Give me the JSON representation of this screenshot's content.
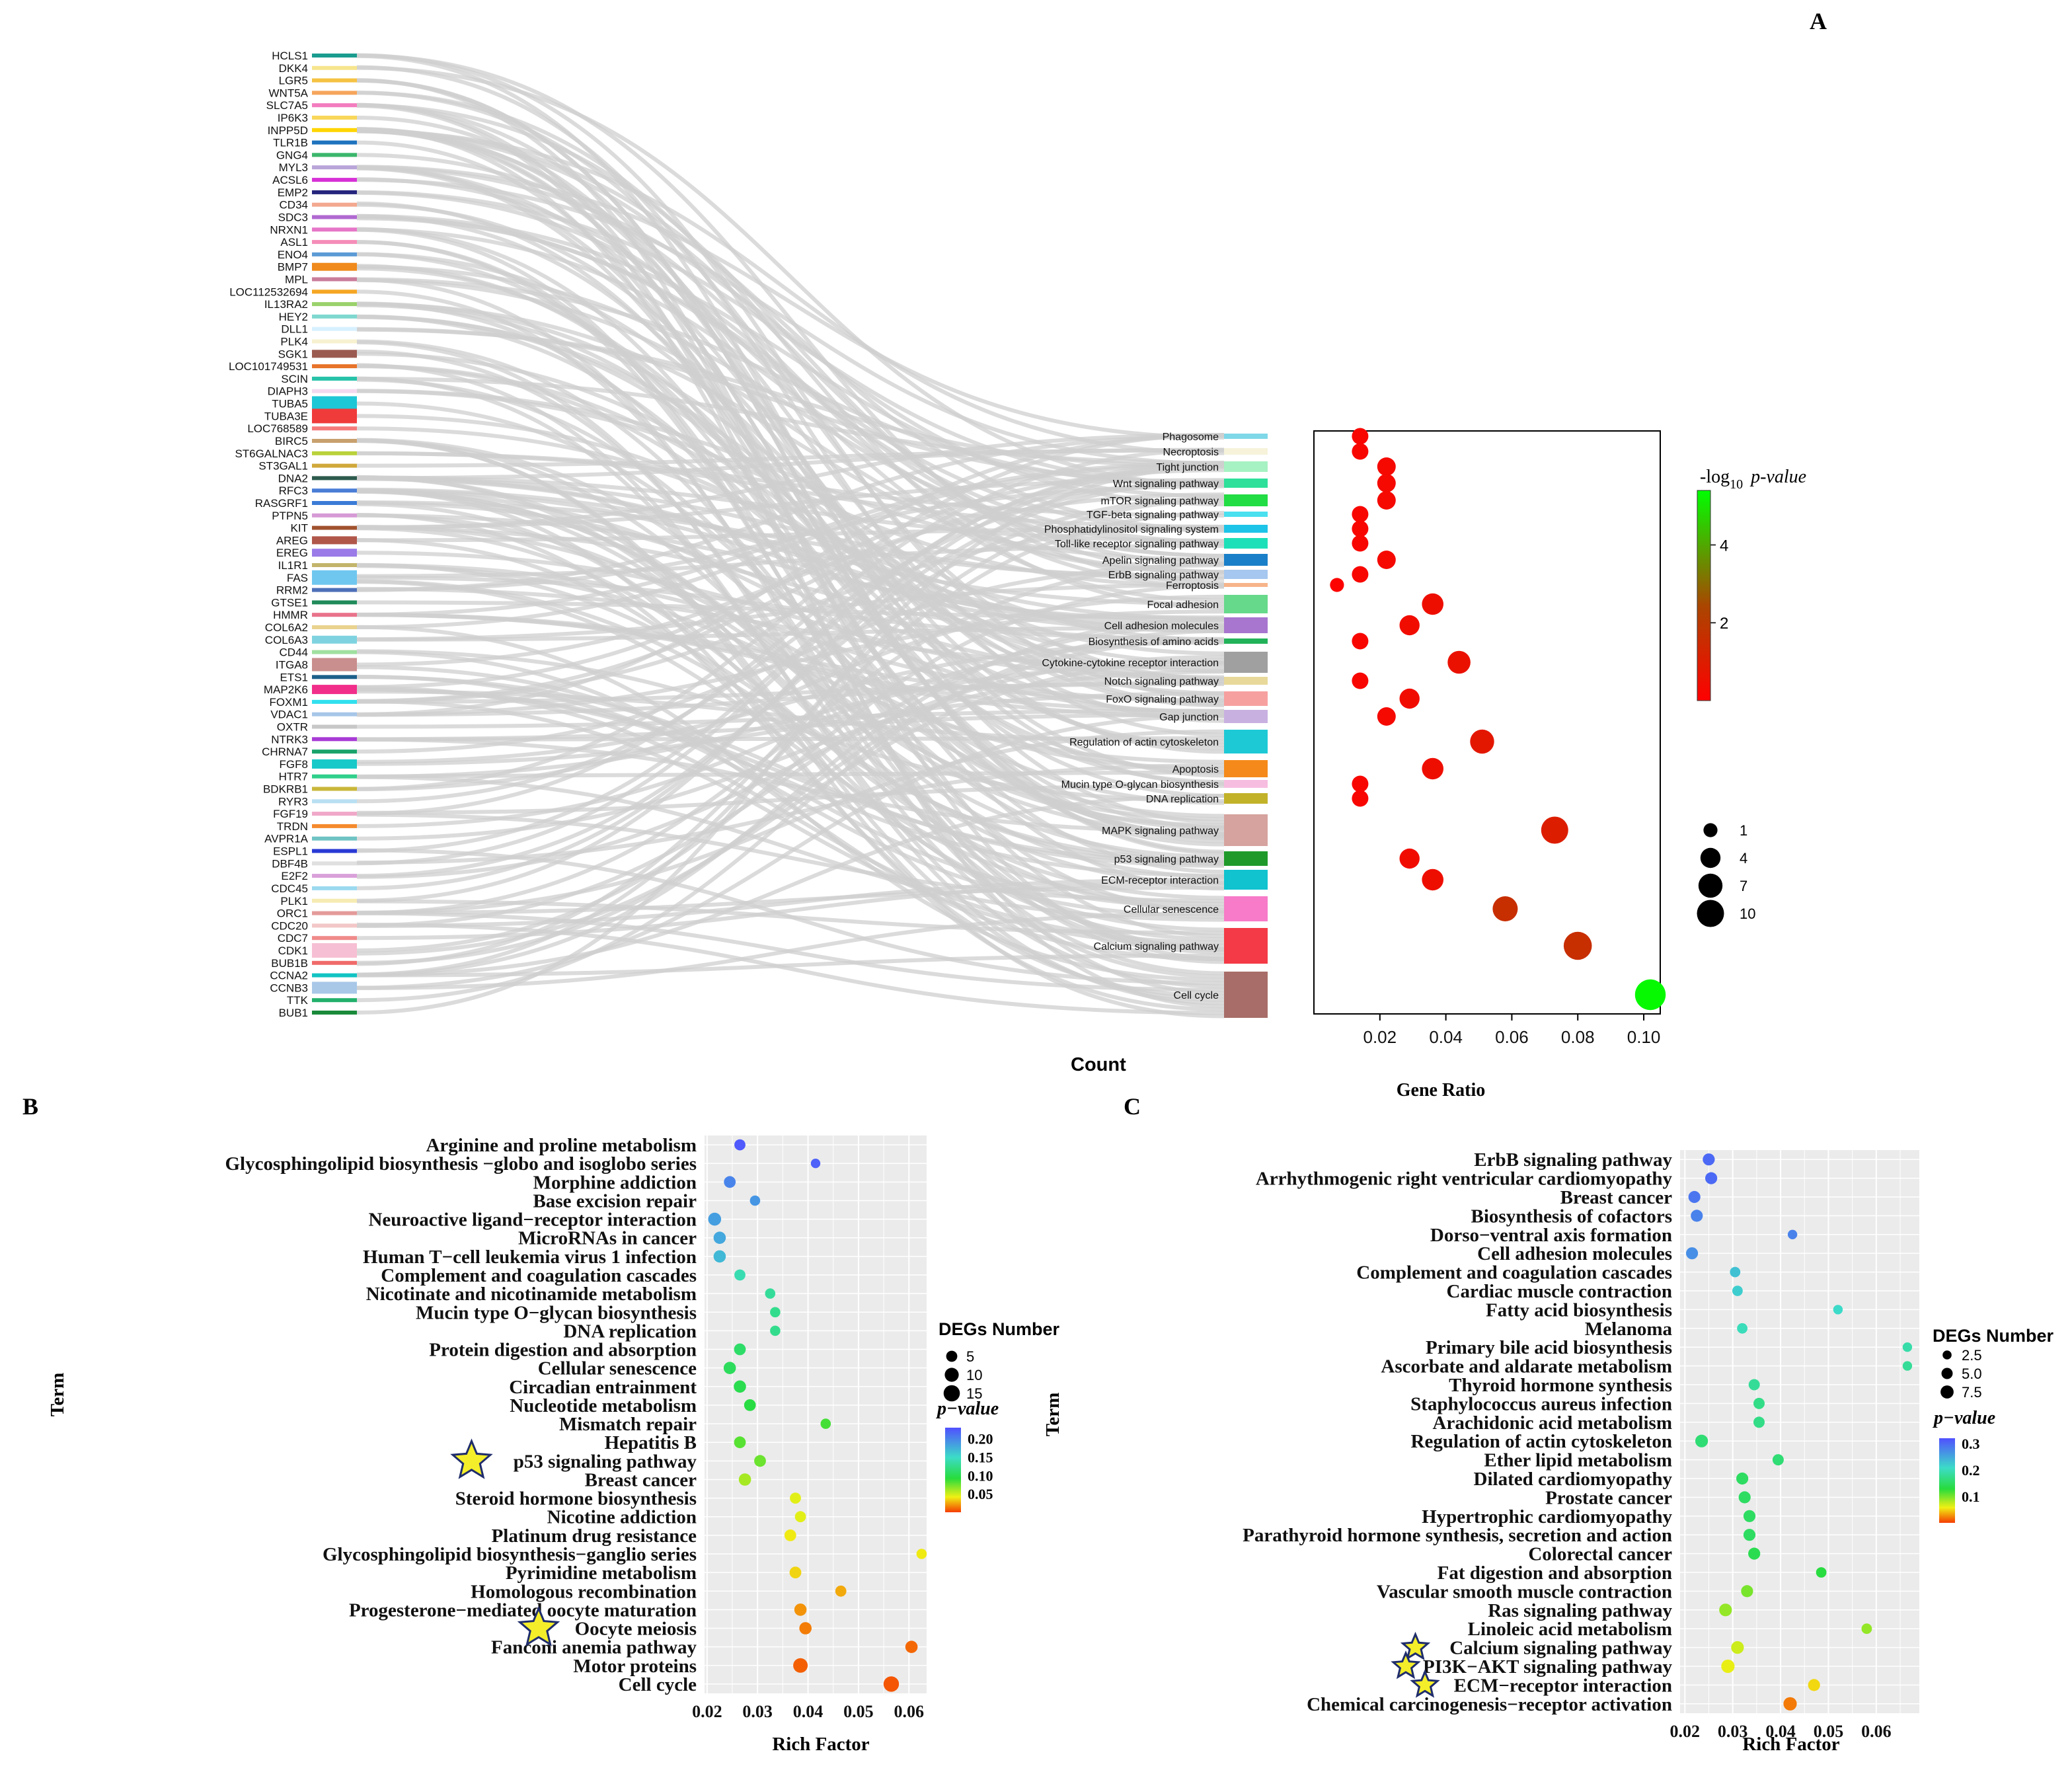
{
  "panel_labels": {
    "a": "A",
    "b": "B",
    "c": "C"
  },
  "colors": {
    "panel_bg": "#ebebeb",
    "grid": "#ffffff",
    "flow": "#cfcfcf",
    "star": "#f4ee2a",
    "star_edge": "#1f2d6b"
  },
  "chart_data": [
    {
      "id": "A-sankey-dot",
      "type": "scatter",
      "genes": [
        "HCLS1",
        "DKK4",
        "LGR5",
        "WNT5A",
        "SLC7A5",
        "IP6K3",
        "INPP5D",
        "TLR1B",
        "GNG4",
        "MYL3",
        "ACSL6",
        "EMP2",
        "CD34",
        "SDC3",
        "NRXN1",
        "ASL1",
        "ENO4",
        "BMP7",
        "MPL",
        "LOC112532694",
        "IL13RA2",
        "HEY2",
        "DLL1",
        "PLK4",
        "SGK1",
        "LOC101749531",
        "SCIN",
        "DIAPH3",
        "TUBA5",
        "TUBA3E",
        "LOC768589",
        "BIRC5",
        "ST6GALNAC3",
        "ST3GAL1",
        "DNA2",
        "RFC3",
        "RASGRF1",
        "PTPN5",
        "KIT",
        "AREG",
        "EREG",
        "IL1R1",
        "FAS",
        "RRM2",
        "GTSE1",
        "HMMR",
        "COL6A2",
        "COL6A3",
        "CD44",
        "ITGA8",
        "ETS1",
        "MAP2K6",
        "FOXM1",
        "VDAC1",
        "OXTR",
        "NTRK3",
        "CHRNA7",
        "FGF8",
        "HTR7",
        "BDKRB1",
        "RYR3",
        "FGF19",
        "TRDN",
        "AVPR1A",
        "ESPL1",
        "DBF4B",
        "E2F2",
        "CDC45",
        "PLK1",
        "ORC1",
        "CDC20",
        "CDC7",
        "CDK1",
        "BUB1B",
        "CCNA2",
        "CCNB3",
        "TTK",
        "BUB1"
      ],
      "pathways": [
        "Phagosome",
        "Necroptosis",
        "Tight junction",
        "Wnt signaling pathway",
        "mTOR signaling pathway",
        "TGF-beta signaling pathway",
        "Phosphatidylinositol signaling system",
        "Toll-like receptor signaling pathway",
        "Apelin signaling pathway",
        "ErbB signaling pathway",
        "Ferroptosis",
        "Focal adhesion",
        "Cell adhesion molecules",
        "Biosynthesis of amino acids",
        "Cytokine-cytokine receptor interaction",
        "Notch signaling pathway",
        "FoxO signaling pathway",
        "Gap junction",
        "Regulation of actin cytoskeleton",
        "Apoptosis",
        "Mucin type O-glycan biosynthesis",
        "DNA replication",
        "MAPK signaling pathway",
        "p53 signaling pathway",
        "ECM-receptor interaction",
        "Cellular senescence",
        "Calcium signaling pathway",
        "Cell cycle"
      ],
      "gene_ratio": [
        0.014,
        0.014,
        0.022,
        0.022,
        0.022,
        0.014,
        0.014,
        0.014,
        0.022,
        0.014,
        0.007,
        0.036,
        0.029,
        0.014,
        0.044,
        0.014,
        0.029,
        0.022,
        0.051,
        0.036,
        0.014,
        0.014,
        0.073,
        0.029,
        0.036,
        0.058,
        0.08,
        0.102
      ],
      "count": [
        2,
        2,
        3,
        3,
        3,
        2,
        2,
        2,
        3,
        2,
        1,
        5,
        4,
        2,
        6,
        2,
        4,
        3,
        7,
        5,
        2,
        2,
        10,
        4,
        5,
        8,
        11,
        14
      ],
      "neg_log10_p": [
        0.2,
        0.2,
        0.3,
        0.3,
        0.3,
        0.2,
        0.2,
        0.2,
        0.3,
        0.2,
        0.1,
        0.5,
        0.4,
        0.2,
        0.6,
        0.2,
        0.4,
        0.3,
        0.8,
        0.5,
        0.2,
        0.2,
        1.0,
        0.4,
        0.5,
        1.6,
        1.6,
        5.3
      ],
      "xlabel": "Gene Ratio",
      "x_ticks": [
        "0.02",
        "0.04",
        "0.06",
        "0.08",
        "0.10"
      ],
      "xlim": [
        0.0,
        0.105
      ],
      "color_legend_title": "-log10 p-value",
      "color_legend_title_pre": "-log",
      "color_legend_title_sub": "10",
      "color_legend_title_italic": "p-value",
      "color_ticks": [
        "2",
        "4"
      ],
      "color_range": [
        0,
        5.4
      ],
      "size_legend_title": "Count",
      "size_ticks": [
        "1",
        "4",
        "7",
        "10"
      ]
    },
    {
      "id": "B-dot",
      "type": "scatter",
      "terms": [
        "Arginine and proline metabolism",
        "Glycosphingolipid biosynthesis −globo and isoglobo series",
        "Morphine addiction",
        "Base excision repair",
        "Neuroactive ligand−receptor interaction",
        "MicroRNAs in cancer",
        "Human T−cell leukemia virus 1 infection",
        "Complement and coagulation cascades",
        "Nicotinate and nicotinamide metabolism",
        "Mucin type O−glycan biosynthesis",
        "DNA replication",
        "Protein digestion and absorption",
        "Cellular senescence",
        "Circadian entrainment",
        "Nucleotide metabolism",
        "Mismatch repair",
        "Hepatitis B",
        "p53 signaling pathway",
        "Breast cancer",
        "Steroid hormone biosynthesis",
        "Nicotine addiction",
        "Platinum drug resistance",
        "Glycosphingolipid biosynthesis−ganglio series",
        "Pyrimidine metabolism",
        "Homologous recombination",
        "Progesterone−mediated oocyte maturation",
        "Oocyte meiosis",
        "Fanconi anemia pathway",
        "Motor proteins",
        "Cell cycle"
      ],
      "rich_factor": [
        0.0265,
        0.0415,
        0.0245,
        0.0295,
        0.0215,
        0.0225,
        0.0225,
        0.0265,
        0.0325,
        0.0335,
        0.0335,
        0.0265,
        0.0245,
        0.0265,
        0.0285,
        0.0435,
        0.0265,
        0.0305,
        0.0275,
        0.0375,
        0.0385,
        0.0365,
        0.0625,
        0.0375,
        0.0465,
        0.0385,
        0.0395,
        0.0605,
        0.0385,
        0.0565
      ],
      "degs": [
        5,
        3,
        6,
        4,
        8,
        7,
        7,
        5,
        4,
        4,
        4,
        6,
        7,
        7,
        6,
        4,
        6,
        6,
        7,
        5,
        5,
        6,
        4,
        6,
        5,
        7,
        7,
        7,
        11,
        13
      ],
      "p_value": [
        0.225,
        0.22,
        0.2,
        0.19,
        0.185,
        0.18,
        0.17,
        0.14,
        0.13,
        0.125,
        0.125,
        0.11,
        0.105,
        0.1,
        0.095,
        0.085,
        0.08,
        0.075,
        0.06,
        0.045,
        0.045,
        0.04,
        0.04,
        0.035,
        0.025,
        0.02,
        0.015,
        0.01,
        0.008,
        0.006
      ],
      "starred": [
        "p53 signaling pathway",
        "Oocyte meiosis"
      ],
      "xlabel": "Rich Factor",
      "ylabel": "Term",
      "x_ticks": [
        "0.02",
        "0.03",
        "0.04",
        "0.05",
        "0.06"
      ],
      "xlim": [
        0.0195,
        0.0635
      ],
      "size_legend_title": "DEGs Number",
      "size_ticks": [
        "5",
        "10",
        "15"
      ],
      "color_legend_title": "p−value",
      "color_ticks": [
        "0.20",
        "0.15",
        "0.10",
        "0.05"
      ],
      "color_range": [
        0.0,
        0.23
      ]
    },
    {
      "id": "C-dot",
      "type": "scatter",
      "terms": [
        "ErbB signaling pathway",
        "Arrhythmogenic right ventricular cardiomyopathy",
        "Breast cancer",
        "Biosynthesis of cofactors",
        "Dorso−ventral axis formation",
        "Cell adhesion molecules",
        "Complement and coagulation cascades",
        "Cardiac muscle contraction",
        "Fatty acid biosynthesis",
        "Melanoma",
        "Primary bile acid biosynthesis",
        "Ascorbate and aldarate metabolism",
        "Thyroid hormone synthesis",
        "Staphylococcus aureus infection",
        "Arachidonic acid metabolism",
        "Regulation of actin cytoskeleton",
        "Ether lipid metabolism",
        "Dilated cardiomyopathy",
        "Prostate cancer",
        "Hypertrophic cardiomyopathy",
        "Parathyroid hormone synthesis, secretion and action",
        "Colorectal cancer",
        "Fat digestion and absorption",
        "Vascular smooth muscle contraction",
        "Ras signaling pathway",
        "Linoleic acid metabolism",
        "Calcium signaling pathway",
        "PI3K−AKT signaling pathway",
        "ECM−receptor interaction",
        "Chemical carcinogenesis−receptor activation"
      ],
      "rich_factor": [
        0.025,
        0.0255,
        0.022,
        0.0225,
        0.0425,
        0.0215,
        0.0305,
        0.031,
        0.052,
        0.032,
        0.0665,
        0.0665,
        0.0345,
        0.0355,
        0.0355,
        0.0235,
        0.0395,
        0.032,
        0.0325,
        0.0335,
        0.0335,
        0.0345,
        0.0485,
        0.033,
        0.0285,
        0.058,
        0.031,
        0.029,
        0.047,
        0.042
      ],
      "degs": [
        6,
        6,
        6,
        6,
        3,
        6,
        4,
        4,
        3,
        4,
        3,
        3,
        5,
        5,
        5,
        7,
        5,
        6,
        6,
        6,
        6,
        6,
        4,
        6,
        7,
        4,
        7,
        8,
        6,
        8
      ],
      "p_value": [
        0.3,
        0.3,
        0.29,
        0.28,
        0.28,
        0.27,
        0.23,
        0.22,
        0.21,
        0.2,
        0.19,
        0.18,
        0.18,
        0.17,
        0.17,
        0.16,
        0.16,
        0.15,
        0.15,
        0.15,
        0.15,
        0.14,
        0.13,
        0.1,
        0.09,
        0.09,
        0.07,
        0.06,
        0.05,
        0.02
      ],
      "starred": [
        "Calcium signaling pathway",
        "PI3K−AKT signaling pathway",
        "ECM−receptor interaction"
      ],
      "xlabel": "Rich Factor",
      "ylabel": "Term",
      "x_ticks": [
        "0.02",
        "0.03",
        "0.04",
        "0.05",
        "0.06"
      ],
      "xlim": [
        0.019,
        0.069
      ],
      "size_legend_title": "DEGs Number",
      "size_ticks": [
        "2.5",
        "5.0",
        "7.5"
      ],
      "color_legend_title": "p−value",
      "color_ticks": [
        "0.3",
        "0.2",
        "0.1"
      ],
      "color_range": [
        0.0,
        0.32
      ]
    }
  ]
}
